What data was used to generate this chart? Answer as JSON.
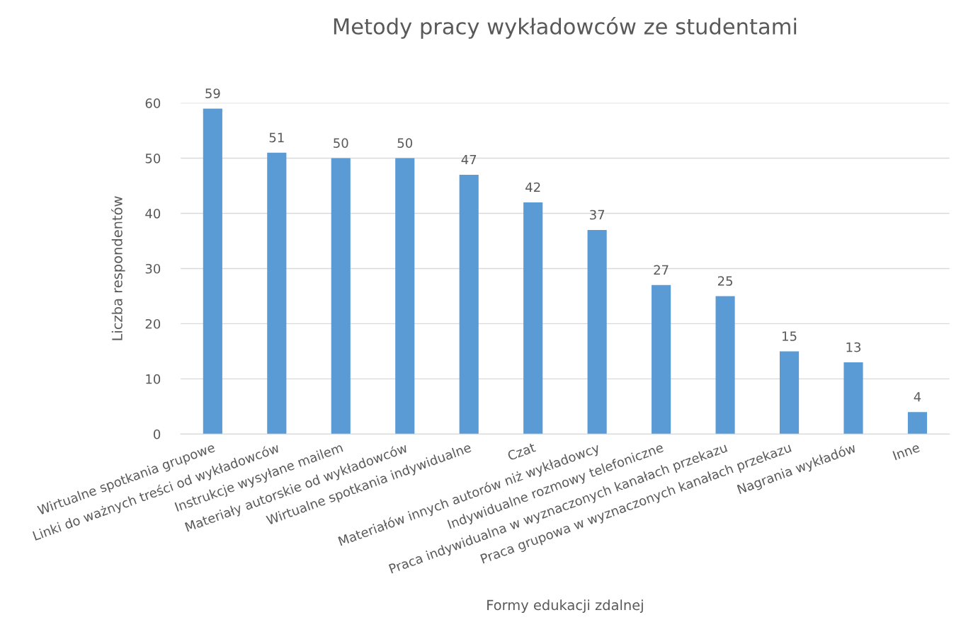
{
  "chart_data": {
    "type": "bar",
    "title": "Metody pracy wykładowców ze studentami",
    "xlabel": "Formy edukacji zdalnej",
    "ylabel": "Liczba respondentów",
    "categories": [
      "Wirtualne spotkania grupowe",
      "Linki do ważnych treści od wykładowców",
      "Instrukcje wysyłane mailem",
      "Materiały autorskie od wykładowców",
      "Wirtualne spotkania indywidualne",
      "Czat",
      "Materiałów innych autorów niż wykładowcy",
      "Indywidualne rozmowy telefoniczne",
      "Praca indywidualna w wyznaczonych kanałach przekazu",
      "Praca grupowa w wyznaczonych kanałach przekazu",
      "Nagrania wykładów",
      "Inne"
    ],
    "values": [
      59,
      51,
      50,
      50,
      47,
      42,
      37,
      27,
      25,
      15,
      13,
      4
    ],
    "color": "#5b9bd5",
    "ylim": [
      0,
      60
    ],
    "yticks": [
      0,
      10,
      20,
      30,
      40,
      50,
      60
    ],
    "grid": "y",
    "data_labels": true,
    "legend": false
  }
}
